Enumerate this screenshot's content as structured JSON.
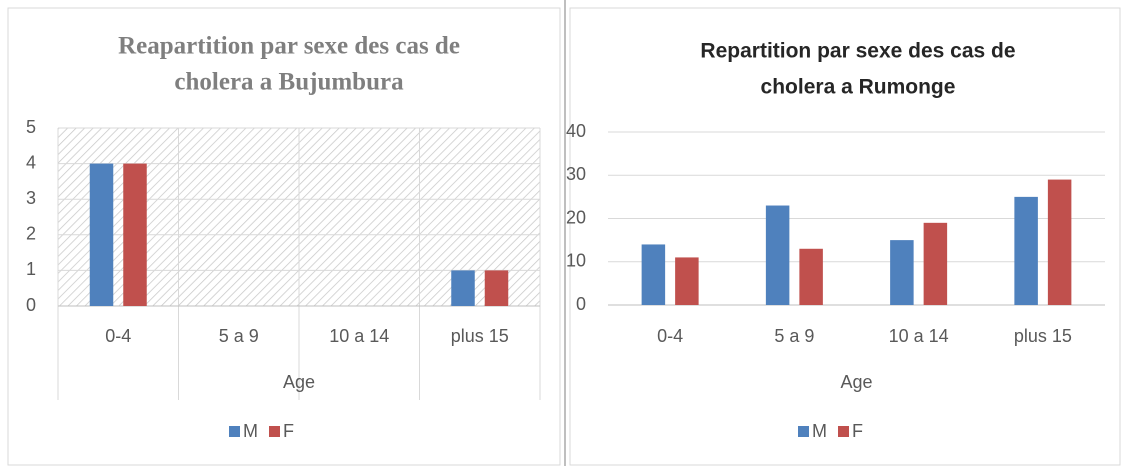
{
  "chart_data": [
    {
      "type": "bar",
      "title": "Reapartition par sexe des cas de",
      "title_line2": "cholera a Bujumbura",
      "title_color": "#7f7f7f",
      "title_font": "serif",
      "categories": [
        "0-4",
        "5 a 9",
        "10 a 14",
        "plus 15"
      ],
      "x_label": "Age",
      "series": [
        {
          "name": "M",
          "color": "#4f81bd",
          "values": [
            4,
            0,
            0,
            1
          ]
        },
        {
          "name": "F",
          "color": "#c0504d",
          "values": [
            4,
            0,
            0,
            1
          ]
        }
      ],
      "ylim": [
        0,
        5
      ],
      "yticks": [
        0,
        1,
        2,
        3,
        4,
        5
      ],
      "grid": true,
      "vertical_grid": true,
      "plot_pattern": "hatch",
      "legend": "bottom"
    },
    {
      "type": "bar",
      "title": "Repartition par sexe des cas de",
      "title_line2": "cholera a Rumonge",
      "title_color": "#262626",
      "title_font": "sans-serif",
      "categories": [
        "0-4",
        "5 a 9",
        "10 a 14",
        "plus 15"
      ],
      "x_label": "Age",
      "series": [
        {
          "name": "M",
          "color": "#4f81bd",
          "values": [
            14,
            23,
            15,
            25
          ]
        },
        {
          "name": "F",
          "color": "#c0504d",
          "values": [
            11,
            13,
            19,
            29
          ]
        }
      ],
      "ylim": [
        0,
        40
      ],
      "yticks": [
        0,
        10,
        20,
        30,
        40
      ],
      "grid": true,
      "vertical_grid": false,
      "plot_pattern": "none",
      "legend": "bottom"
    }
  ]
}
